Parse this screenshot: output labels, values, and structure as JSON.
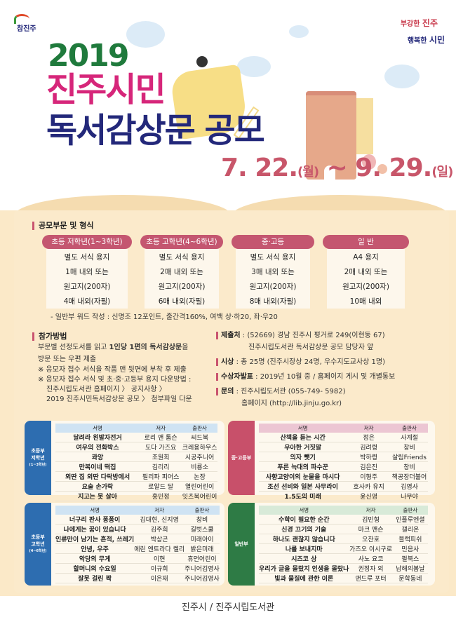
{
  "header": {
    "logo_text": "참진주",
    "slogan_line1_a": "부강한 ",
    "slogan_line1_b": "진주",
    "slogan_line2_a": "행복한 ",
    "slogan_line2_b": "시민",
    "title_year": "2019",
    "title_line2": "진주시민",
    "title_line3": "독서감상문 공모",
    "date_start": "7. 22.",
    "date_start_day": "(월)",
    "date_sep": " ~ ",
    "date_end": "9. 29.",
    "date_end_day": "(일)"
  },
  "colors": {
    "green": "#1f7a3c",
    "magenta": "#d6267a",
    "navy": "#23287a",
    "date": "#c8566a",
    "accent": "#c45670",
    "beige": "#fbe9c8"
  },
  "categories": {
    "heading": "공모부문 및 형식",
    "items": [
      {
        "label": "초등 저학년(1~3학년)",
        "lines": [
          "별도 서식 용지",
          "1매 내외 또는",
          "원고지(200자)",
          "4매 내외(자필)"
        ]
      },
      {
        "label": "초등 고학년(4~6학년)",
        "lines": [
          "별도 서식 용지",
          "2매 내외 또는",
          "원고지(200자)",
          "6매 내외(자필)"
        ]
      },
      {
        "label": "중·고등",
        "lines": [
          "별도 서식 용지",
          "3매 내외 또는",
          "원고지(200자)",
          "8매 내외(자필)"
        ]
      },
      {
        "label": "일  반",
        "lines": [
          "A4 용지",
          "2매 내외 또는",
          "원고지(200자)",
          "10매 내외"
        ]
      }
    ],
    "note": "- 일반부 워드 작성 : 신명조 12포인트, 줄간격160%, 여백 상·하20, 좌·우20"
  },
  "participation": {
    "heading": "참가방법",
    "line1_a": "부문별 선정도서를 읽고 ",
    "line1_b": "1인당 1편의 독서감상문",
    "line1_c": "을",
    "line2": "방문 또는 우편 제출",
    "line3": "※ 응모자 접수 서식을 작품 맨 뒷면에 부착 후 제출",
    "line4": "※ 응모자 접수 서식 및 초·중·고등부 용지 다운방법 :",
    "line5": "진주시립도서관 홈페이지 〉 공지사항 〉",
    "line6": "2019 진주시민독서감상문 공모 〉 첨부파일 다운"
  },
  "info": {
    "submit_label": "제출처",
    "submit_value": " : (52669) 경남 진주시 평거로 249(이현동 67)",
    "submit_value2": "진주시립도서관 독서감상문 공모 담당자 앞",
    "award_label": "시상",
    "award_value": " : 총 25명 (진주시장상 24명, 우수지도교사상 1명)",
    "announce_label": "수상자발표",
    "announce_value": " : 2019년 10월 중 / 홈페이지 게시 및 개별통보",
    "contact_label": "문의",
    "contact_value": " : 진주시립도서관 (055-749- 5982)",
    "contact_value2": "홈페이지 (http://lib.jinju.go.kr)"
  },
  "book_lists": [
    {
      "tab": [
        "초등부",
        "저학년",
        "(1~3학년)"
      ],
      "color": "#2d6db0",
      "header_bg": "#cfe3f3",
      "columns": [
        "서명",
        "저자",
        "출판사"
      ],
      "rows": [
        [
          "달려라 왼발자전거",
          "로리 앤 톰슨",
          "씨드북"
        ],
        [
          "여우의 전화박스",
          "도다 가즈요",
          "크레용하우스"
        ],
        [
          "콰앙",
          "조원희",
          "시공주니어"
        ],
        [
          "만복이네 떡집",
          "김리리",
          "비룡소"
        ],
        [
          "외딴 집 외딴 다락방에서",
          "필리파 피어스",
          "논장"
        ],
        [
          "요술 손가락",
          "로알드 달",
          "열린어린이"
        ],
        [
          "지고는 못 살아",
          "홍민정",
          "잇츠북어린이"
        ]
      ]
    },
    {
      "tab": [
        "중·고등부"
      ],
      "color": "#c8506a",
      "header_bg": "#ecc6d3",
      "columns": [
        "서명",
        "저자",
        "출판사"
      ],
      "rows": [
        [
          "산책을 듣는 시간",
          "정은",
          "사계절"
        ],
        [
          "우아한 거짓말",
          "김려령",
          "창비"
        ],
        [
          "의자 뺏기",
          "박하령",
          "살림Friends"
        ],
        [
          "푸른 늑대의 파수꾼",
          "김은진",
          "창비"
        ],
        [
          "사향고양이의 눈물을 마시다",
          "이형주",
          "책공장더불어"
        ],
        [
          "조선 선비와 일본 사무라이",
          "호사카 유지",
          "김영사"
        ],
        [
          "1.5도의 미래",
          "윤신영",
          "나무야"
        ]
      ]
    },
    {
      "tab": [
        "초등부",
        "고학년",
        "(4~6학년)"
      ],
      "color": "#2d6db0",
      "header_bg": "#cfe3f3",
      "columns": [
        "서명",
        "저자",
        "출판사"
      ],
      "rows": [
        [
          "너구리 판사 퐁퐁이",
          "김대현, 신지영",
          "창비"
        ],
        [
          "나에게는 꿈이 있습니다",
          "김주희",
          "길벗스쿨"
        ],
        [
          "인류만이 남기는 흔적, 쓰레기",
          "박상곤",
          "미래아이"
        ],
        [
          "안녕, 우주",
          "에린 엔트라다 켈리",
          "밝은미래"
        ],
        [
          "악당의 무게",
          "이현",
          "휴먼어린이"
        ],
        [
          "할머니의 수요일",
          "이규희",
          "주니어김영사"
        ],
        [
          "잘못 걸린 짝",
          "이은재",
          "주니어김영사"
        ]
      ]
    },
    {
      "tab": [
        "일반부"
      ],
      "color": "#2e7b45",
      "header_bg": "#d8ead8",
      "columns": [
        "서명",
        "저자",
        "출판사"
      ],
      "rows": [
        [
          "수학이 필요한 순간",
          "김민형",
          "인플루엔셜"
        ],
        [
          "신경 끄기의 기술",
          "마크 맨슨",
          "갤리온"
        ],
        [
          "하나도 괜찮지 않습니다",
          "오찬호",
          "블랙피쉬"
        ],
        [
          "나를 보내지마",
          "가즈오 이시구로",
          "민음사"
        ],
        [
          "시즈코 상",
          "사노 요코",
          "펄북스"
        ],
        [
          "우리가 글을 몰랐지 인생을 몰랐나",
          "권정자 외",
          "남해의봄날"
        ],
        [
          "빛과 물질에 관한 이론",
          "앤드루 포터",
          "문학동네"
        ]
      ]
    }
  ],
  "footer": {
    "text": "진주시 / 진주시립도서관"
  }
}
